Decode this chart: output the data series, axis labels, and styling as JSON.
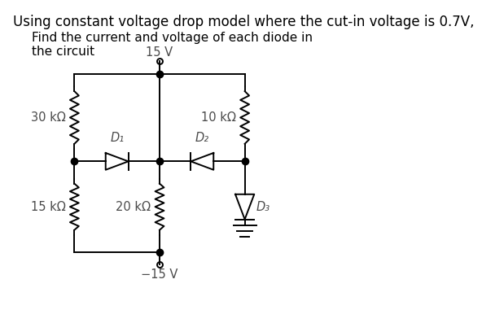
{
  "title_line1": "Using constant voltage drop model where the cut-in voltage is 0.7V,",
  "subtitle_line1": "Find the current and voltage of each diode in",
  "subtitle_line2": "the circuit",
  "title_fontsize": 12,
  "subtitle_fontsize": 11,
  "bg_color": "#ffffff",
  "line_color": "#000000",
  "text_color": "#000000",
  "label_color": "#4a4a4a",
  "labels": {
    "R1": "30 kΩ",
    "R2": "15 kΩ",
    "R3": "20 kΩ",
    "R4": "10 kΩ",
    "D1": "D₁",
    "D2": "D₂",
    "D3": "D₃",
    "V_top": "15 V",
    "V_bot": "−15 V"
  }
}
